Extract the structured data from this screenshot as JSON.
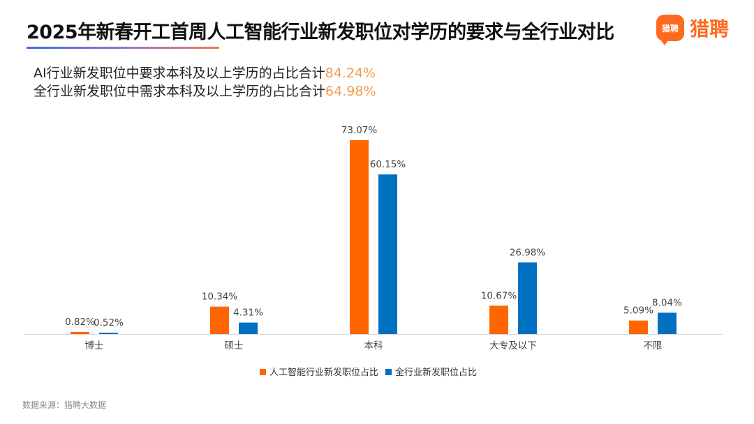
{
  "header": {
    "title": "2025年新春开工首周人工智能行业新发职位对学历的要求与全行业对比",
    "logo_badge_text": "猎聘",
    "logo_text": "猎聘"
  },
  "summary": {
    "line1_text": "AI行业新发职位中要求本科及以上学历的占比合计",
    "line1_value": "84.24%",
    "line2_text": "全行业新发职位中需求本科及以上学历的占比合计",
    "line2_value": "64.98%"
  },
  "footer": {
    "source": "数据来源：猎聘大数据"
  },
  "colors": {
    "ai": "#ff6600",
    "all": "#0070c0",
    "accent": "#f39a4f"
  },
  "chart_data": {
    "type": "bar",
    "categories": [
      "博士",
      "硕士",
      "本科",
      "大专及以下",
      "不限"
    ],
    "series": [
      {
        "name": "人工智能行业新发职位占比",
        "values": [
          0.82,
          10.34,
          73.07,
          10.67,
          5.09
        ],
        "labels": [
          "0.82%",
          "10.34%",
          "73.07%",
          "10.67%",
          "5.09%"
        ]
      },
      {
        "name": "全行业新发职位占比",
        "values": [
          0.52,
          4.31,
          60.15,
          26.98,
          8.04
        ],
        "labels": [
          "0.52%",
          "4.31%",
          "60.15%",
          "26.98%",
          "8.04%"
        ]
      }
    ],
    "ylim": [
      0,
      73.07
    ],
    "grid": false,
    "legend_position": "bottom"
  }
}
